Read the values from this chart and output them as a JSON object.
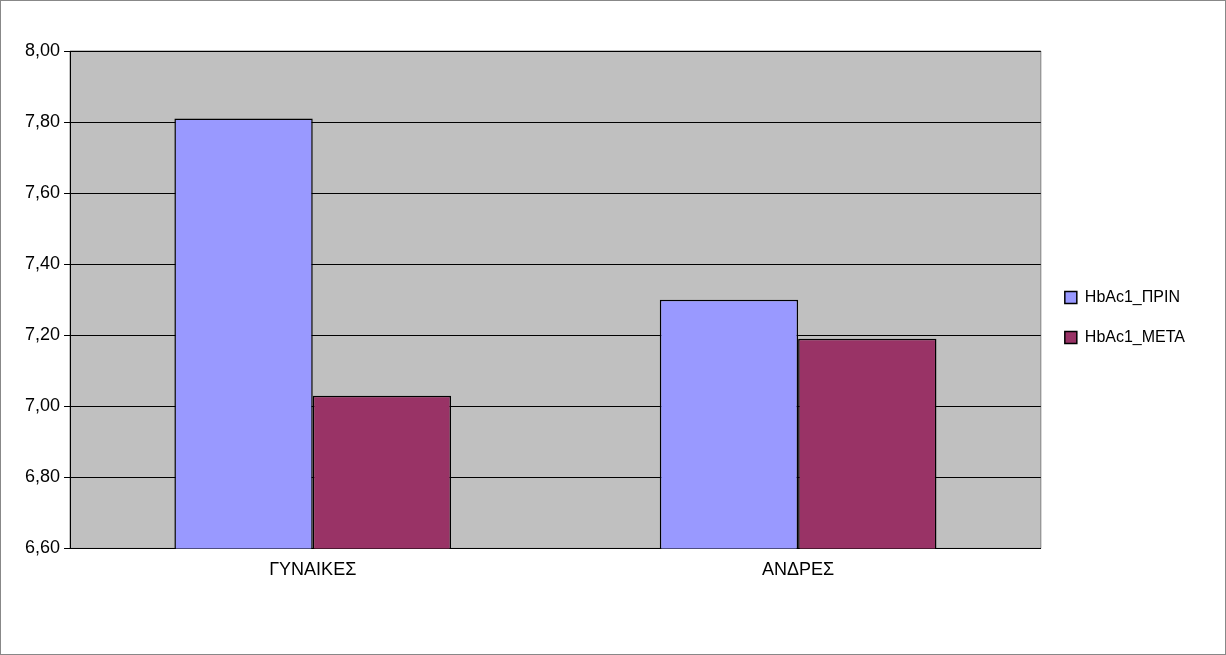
{
  "chart_data": {
    "type": "bar",
    "categories": [
      "ΓΥΝΑΙΚΕΣ",
      "ΑΝΔΡΕΣ"
    ],
    "series": [
      {
        "name": "HbAc1_ΠΡΙΝ",
        "color": "#9999ff",
        "values": [
          7.81,
          7.3
        ]
      },
      {
        "name": "HbAc1_ΜΕΤΑ",
        "color": "#993366",
        "values": [
          7.03,
          7.19
        ]
      }
    ],
    "ylim": [
      6.6,
      8.0
    ],
    "yticks": [
      {
        "value": 6.6,
        "label": "6,60"
      },
      {
        "value": 6.8,
        "label": "6,80"
      },
      {
        "value": 7.0,
        "label": "7,00"
      },
      {
        "value": 7.2,
        "label": "7,20"
      },
      {
        "value": 7.4,
        "label": "7,40"
      },
      {
        "value": 7.6,
        "label": "7,60"
      },
      {
        "value": 7.8,
        "label": "7,80"
      },
      {
        "value": 8.0,
        "label": "8,00"
      }
    ],
    "grid": "y",
    "legend": "right"
  }
}
